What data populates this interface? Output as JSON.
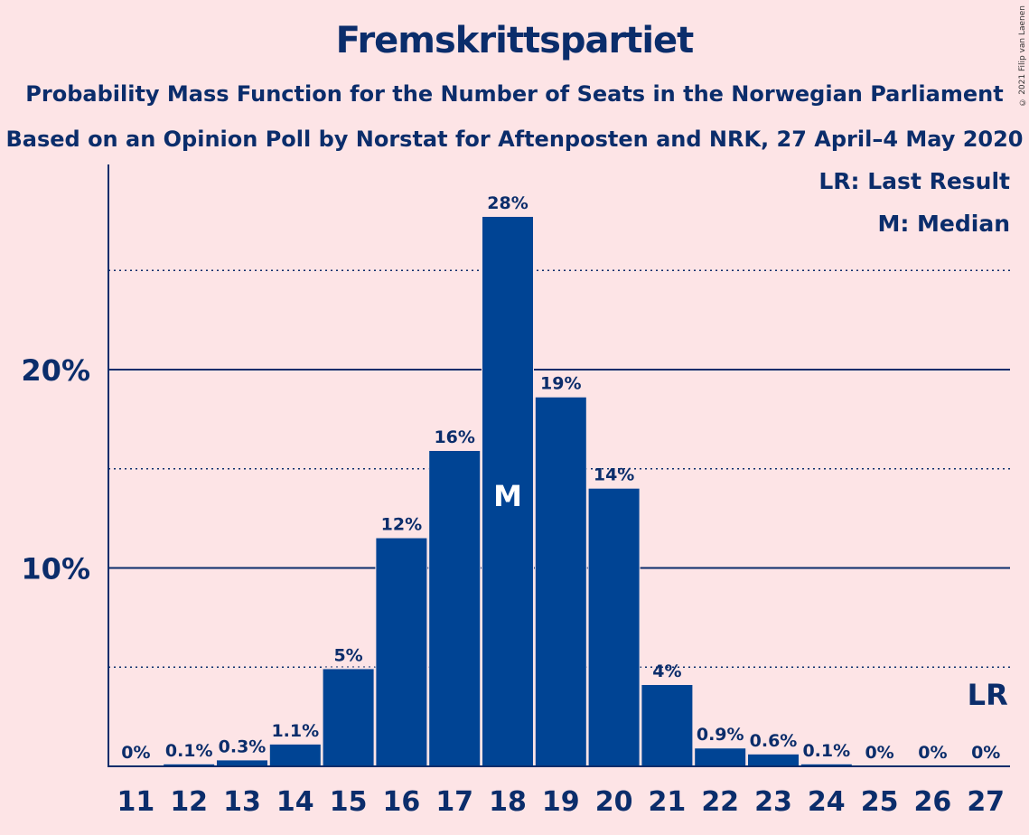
{
  "title": "Fremskrittspartiet",
  "subtitle1": "Probability Mass Function for the Number of Seats in the Norwegian Parliament",
  "subtitle2": "Based on an Opinion Poll by Norstat for Aftenposten and NRK, 27 April–4 May 2020",
  "copyright": "© 2021 Filip van Laenen",
  "legend": {
    "last_result": "LR: Last Result",
    "median": "M: Median"
  },
  "colors": {
    "bar": "#004494",
    "background": "#fde4e6",
    "text": "#0b2d6b"
  },
  "chart_data": {
    "type": "bar",
    "categories": [
      "11",
      "12",
      "13",
      "14",
      "15",
      "16",
      "17",
      "18",
      "19",
      "20",
      "21",
      "22",
      "23",
      "24",
      "25",
      "26",
      "27"
    ],
    "values": [
      0.0,
      0.1,
      0.3,
      1.1,
      4.9,
      11.5,
      15.9,
      27.7,
      18.6,
      14.0,
      4.1,
      0.9,
      0.6,
      0.1,
      0.0,
      0.0,
      0.0
    ],
    "labels": [
      "0%",
      "0.1%",
      "0.3%",
      "1.1%",
      "5%",
      "12%",
      "16%",
      "28%",
      "19%",
      "14%",
      "4%",
      "0.9%",
      "0.6%",
      "0.1%",
      "0%",
      "0%",
      "0%"
    ],
    "ylim": [
      0,
      30
    ],
    "yticks": [
      {
        "value": 10,
        "label": "10%"
      },
      {
        "value": 20,
        "label": "20%"
      }
    ],
    "dotted_gridlines": [
      5,
      15,
      25
    ],
    "median_category": "18",
    "median_marker": "M",
    "last_result_category": "27",
    "last_result_marker": "LR"
  }
}
